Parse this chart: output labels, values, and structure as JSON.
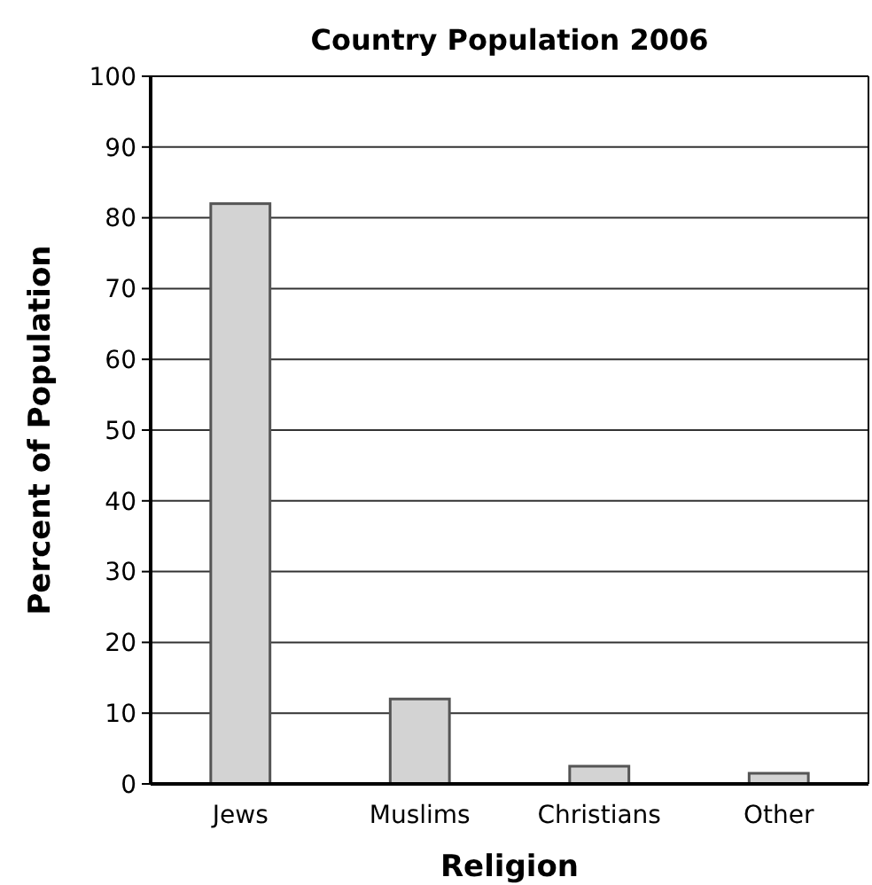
{
  "chart_data": {
    "type": "bar",
    "title": "Country Population 2006",
    "xlabel": "Religion",
    "ylabel": "Percent of Population",
    "categories": [
      "Jews",
      "Muslims",
      "Christians",
      "Other"
    ],
    "values": [
      82,
      12,
      2.5,
      1.5
    ],
    "color": "#d3d3d3",
    "ylim": [
      0,
      100
    ],
    "yticks": [
      0,
      10,
      20,
      30,
      40,
      50,
      60,
      70,
      80,
      90,
      100
    ],
    "grid": "y"
  }
}
